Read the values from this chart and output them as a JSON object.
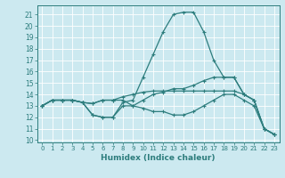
{
  "title": "",
  "xlabel": "Humidex (Indice chaleur)",
  "background_color": "#cce9f0",
  "grid_color": "#ffffff",
  "line_color": "#2d7d7d",
  "xlim": [
    -0.5,
    23.5
  ],
  "ylim": [
    9.8,
    21.8
  ],
  "yticks": [
    10,
    11,
    12,
    13,
    14,
    15,
    16,
    17,
    18,
    19,
    20,
    21
  ],
  "xticks": [
    0,
    1,
    2,
    3,
    4,
    5,
    6,
    7,
    8,
    9,
    10,
    11,
    12,
    13,
    14,
    15,
    16,
    17,
    18,
    19,
    20,
    21,
    22,
    23
  ],
  "series": [
    [
      13.0,
      13.5,
      13.5,
      13.5,
      13.3,
      12.2,
      12.0,
      12.0,
      13.3,
      13.5,
      15.5,
      17.5,
      19.5,
      21.0,
      21.2,
      21.2,
      19.5,
      17.0,
      15.5,
      15.5,
      14.0,
      13.5,
      11.0,
      10.5
    ],
    [
      13.0,
      13.5,
      13.5,
      13.5,
      13.3,
      12.2,
      12.0,
      12.0,
      13.0,
      13.0,
      13.5,
      14.0,
      14.2,
      14.5,
      14.5,
      14.8,
      15.2,
      15.5,
      15.5,
      15.5,
      14.0,
      13.5,
      11.0,
      10.5
    ],
    [
      13.0,
      13.5,
      13.5,
      13.5,
      13.3,
      13.2,
      13.5,
      13.5,
      13.8,
      14.0,
      14.2,
      14.3,
      14.3,
      14.3,
      14.3,
      14.3,
      14.3,
      14.3,
      14.3,
      14.3,
      14.0,
      13.5,
      11.0,
      10.5
    ],
    [
      13.0,
      13.5,
      13.5,
      13.5,
      13.3,
      13.2,
      13.5,
      13.5,
      13.5,
      13.0,
      12.8,
      12.5,
      12.5,
      12.2,
      12.2,
      12.5,
      13.0,
      13.5,
      14.0,
      14.0,
      13.5,
      13.0,
      11.0,
      10.5
    ]
  ]
}
